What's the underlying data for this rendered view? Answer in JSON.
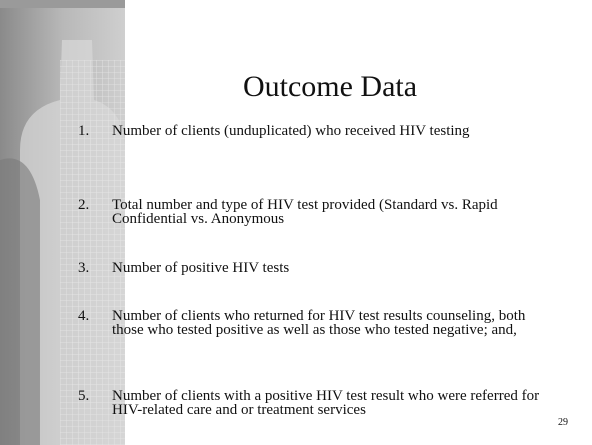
{
  "header": {
    "title": "Outcome Data"
  },
  "items": [
    {
      "number": "1.",
      "text": "Number of clients (unduplicated) who received HIV testing"
    },
    {
      "number": "2.",
      "text": "Total number and type of HIV test provided (Standard vs. Rapid Confidential vs. Anonymous"
    },
    {
      "number": "3.",
      "text": "Number of positive HIV tests"
    },
    {
      "number": "4.",
      "text": "Number of clients who returned for HIV test results counseling, both those who tested positive as well as those who tested negative; and,"
    },
    {
      "number": "5.",
      "text": "Number of clients with a positive HIV test result who were referred for HIV-related care and or treatment services"
    }
  ],
  "footer": {
    "page_number": "29"
  }
}
